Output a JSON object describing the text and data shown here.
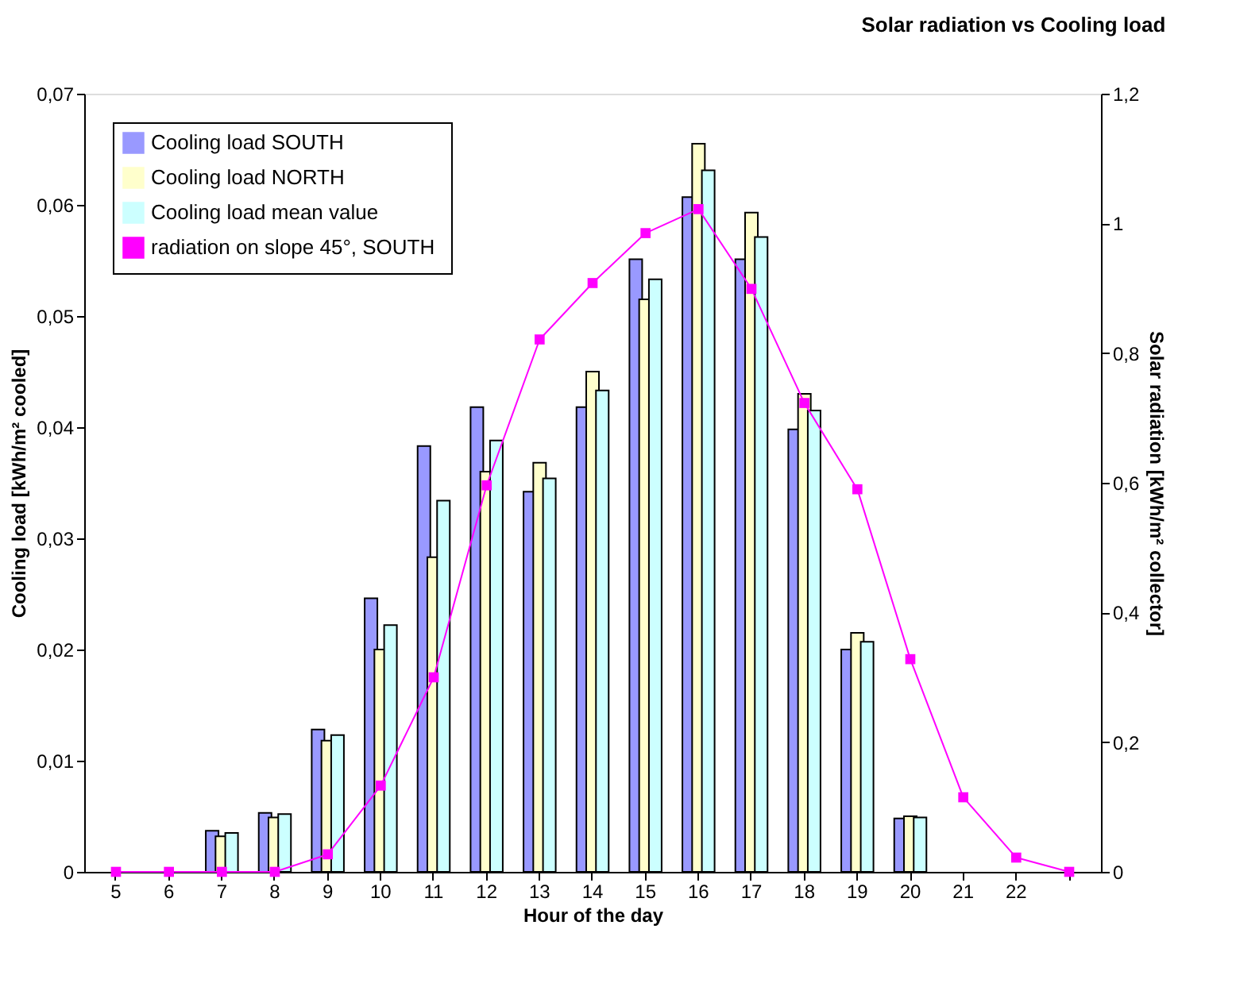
{
  "chart_data": {
    "type": "bar",
    "title": "Solar radiation vs Cooling load",
    "xlabel": "Hour of the day",
    "ylabel": "Cooling load [kWh/m² cooled]",
    "y2label": "Solar radiation [kWh/m² collector]",
    "categories": [
      "5",
      "6",
      "7",
      "8",
      "9",
      "10",
      "11",
      "12",
      "13",
      "14",
      "15",
      "16",
      "17",
      "18",
      "19",
      "20",
      "21",
      "22",
      null
    ],
    "series": [
      {
        "name": "Cooling load SOUTH",
        "color": "#9999ff",
        "values": [
          null,
          null,
          0.0037,
          0.0053,
          0.0128,
          0.0246,
          0.0383,
          0.0418,
          0.0342,
          0.0418,
          0.0551,
          0.0607,
          0.0551,
          0.0398,
          0.02,
          0.0048,
          null,
          null,
          null
        ]
      },
      {
        "name": "Cooling load NORTH",
        "color": "#ffffcc",
        "values": [
          null,
          null,
          0.0032,
          0.0049,
          0.0118,
          0.02,
          0.0283,
          0.036,
          0.0368,
          0.045,
          0.0515,
          0.0655,
          0.0593,
          0.043,
          0.0215,
          0.005,
          null,
          null,
          null
        ]
      },
      {
        "name": "Cooling load mean value",
        "color": "#ccffff",
        "values": [
          null,
          null,
          0.0035,
          0.0052,
          0.0123,
          0.0222,
          0.0334,
          0.0388,
          0.0354,
          0.0433,
          0.0533,
          0.0631,
          0.0571,
          0.0415,
          0.0207,
          0.0049,
          null,
          null,
          null
        ]
      },
      {
        "name": "radiation on  slope 45°, SOUTH",
        "color": "#ff00ff",
        "type": "line",
        "axis": "y2",
        "marker": "square",
        "values": [
          0,
          0,
          0,
          0,
          0.027,
          0.133,
          0.3,
          0.596,
          0.821,
          0.908,
          0.985,
          1.022,
          0.899,
          0.723,
          0.59,
          0.328,
          0.115,
          0.022,
          0
        ]
      }
    ],
    "ylim": [
      0,
      0.07
    ],
    "yticks": [
      {
        "value": 0,
        "label": "0"
      },
      {
        "value": 0.01,
        "label": "0,01"
      },
      {
        "value": 0.02,
        "label": "0,02"
      },
      {
        "value": 0.03,
        "label": "0,03"
      },
      {
        "value": 0.04,
        "label": "0,04"
      },
      {
        "value": 0.05,
        "label": "0,05"
      },
      {
        "value": 0.06,
        "label": "0,06"
      },
      {
        "value": 0.07,
        "label": "0,07"
      }
    ],
    "y2lim": [
      0,
      1.2
    ],
    "y2ticks": [
      {
        "value": 0,
        "label": "0"
      },
      {
        "value": 0.2,
        "label": "0,2"
      },
      {
        "value": 0.4,
        "label": "0,4"
      },
      {
        "value": 0.6,
        "label": "0,6"
      },
      {
        "value": 0.8,
        "label": "0,8"
      },
      {
        "value": 1,
        "label": "1"
      },
      {
        "value": 1.2,
        "label": "1,2"
      }
    ],
    "legend": "top left",
    "grid": false
  }
}
